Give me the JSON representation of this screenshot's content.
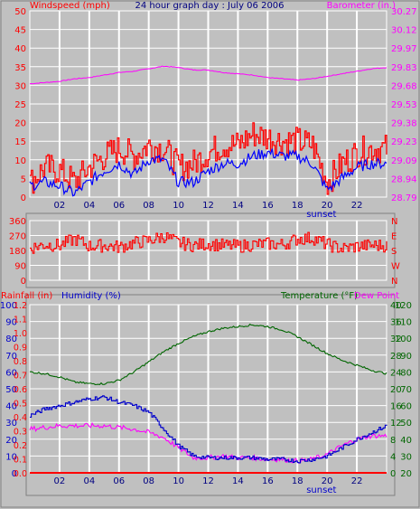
{
  "title": "24 hour graph day : July 06 2006",
  "colors": {
    "background": "#c0c0c0",
    "grid": "#ffffff",
    "windspeed": "#ff0000",
    "gust": "#ff0000",
    "avg_wind": "#0000ff",
    "barometer": "#ff00ff",
    "direction": "#ff0000",
    "rainfall": "#ff0000",
    "humidity": "#0000cc",
    "temperature": "#006600",
    "dew_point": "#ff00ff",
    "sunset_label": "#0000cc"
  },
  "x_axis": {
    "ticks": [
      "02",
      "04",
      "06",
      "08",
      "10",
      "12",
      "14",
      "16",
      "18",
      "20",
      "22"
    ],
    "tick_hours": [
      2,
      4,
      6,
      8,
      10,
      12,
      14,
      16,
      18,
      20,
      22
    ],
    "sunset_label": "sunset",
    "sunset_hour": 20.1,
    "range": [
      0,
      24
    ]
  },
  "chart_data": [
    {
      "type": "line",
      "panel": "wind-barometer",
      "left_axis_label": "Windspeed (mph)",
      "right_axis_label": "Barometer (in.)",
      "left_ylim": [
        0,
        50
      ],
      "left_ticks": [
        "0",
        "5",
        "10",
        "15",
        "20",
        "25",
        "30",
        "35",
        "40",
        "45",
        "50"
      ],
      "right_ylim": [
        28.79,
        30.27
      ],
      "right_ticks": [
        "28.79",
        "28.94",
        "29.09",
        "29.23",
        "29.38",
        "29.53",
        "29.68",
        "29.83",
        "29.97",
        "30.12",
        "30.27"
      ],
      "x": [
        0,
        1,
        2,
        3,
        4,
        5,
        6,
        7,
        8,
        9,
        10,
        11,
        12,
        13,
        14,
        15,
        16,
        17,
        18,
        19,
        20,
        21,
        22,
        23,
        24
      ],
      "series": [
        {
          "name": "Windspeed (mph)",
          "axis": "left",
          "values": [
            4,
            8,
            7,
            4,
            8,
            11,
            13,
            11,
            14,
            13,
            8,
            9,
            12,
            14,
            14,
            17,
            16,
            15,
            15,
            14,
            4,
            9,
            12,
            13,
            13
          ]
        },
        {
          "name": "Avg windspeed",
          "axis": "left",
          "values": [
            3,
            4,
            3,
            1,
            4,
            7,
            9,
            6,
            10,
            10,
            4,
            4,
            7,
            9,
            9,
            11,
            12,
            11,
            11,
            9,
            2,
            5,
            8,
            9,
            9
          ]
        },
        {
          "name": "Barometer (in.)",
          "axis": "right",
          "values": [
            29.69,
            29.7,
            29.71,
            29.73,
            29.74,
            29.76,
            29.78,
            29.79,
            29.81,
            29.83,
            29.82,
            29.8,
            29.8,
            29.78,
            29.77,
            29.76,
            29.74,
            29.73,
            29.72,
            29.73,
            29.75,
            29.77,
            29.79,
            29.81,
            29.82
          ]
        }
      ]
    },
    {
      "type": "line",
      "panel": "wind-direction",
      "left_ylim": [
        0,
        360
      ],
      "left_ticks": [
        "0",
        "90",
        "180",
        "270",
        "360"
      ],
      "right_ticks": [
        "N",
        "W",
        "S",
        "E",
        "N"
      ],
      "x": [
        0,
        1,
        2,
        3,
        4,
        5,
        6,
        7,
        8,
        9,
        10,
        11,
        12,
        13,
        14,
        15,
        16,
        17,
        18,
        19,
        20,
        21,
        22,
        23,
        24
      ],
      "series": [
        {
          "name": "Wind direction",
          "axis": "left",
          "values": [
            195,
            215,
            210,
            250,
            205,
            210,
            200,
            225,
            240,
            265,
            225,
            210,
            220,
            210,
            205,
            215,
            220,
            215,
            250,
            255,
            215,
            190,
            205,
            210,
            210
          ]
        }
      ]
    },
    {
      "type": "line",
      "panel": "temperature-humidity",
      "left_axis_labels": [
        "Rainfall (in)",
        "Humidity (%)"
      ],
      "right_axis_labels": [
        "Temperature (°F)",
        "Dew Point"
      ],
      "rain_ticks": [
        "0.0",
        "0.1",
        "0.2",
        "0.3",
        "0.4",
        "0.5",
        "0.6",
        "0.7",
        "0.8",
        "0.9",
        "1.0",
        "1.1",
        "1.2"
      ],
      "humidity_ticks": [
        "0",
        "10",
        "20",
        "30",
        "40",
        "50",
        "60",
        "70",
        "80",
        "90",
        "100"
      ],
      "celsius_ticks": [
        "0",
        "4",
        "8",
        "12",
        "16",
        "20",
        "24",
        "28",
        "32",
        "36",
        "40"
      ],
      "temp_ticks": [
        "20",
        "30",
        "40",
        "50",
        "60",
        "70",
        "80",
        "90",
        "100",
        "110",
        "120"
      ],
      "humidity_ylim": [
        0,
        100
      ],
      "temp_ylim": [
        20,
        120
      ],
      "x": [
        0,
        1,
        2,
        3,
        4,
        5,
        6,
        7,
        8,
        9,
        10,
        11,
        12,
        13,
        14,
        15,
        16,
        17,
        18,
        19,
        20,
        21,
        22,
        23,
        24
      ],
      "series": [
        {
          "name": "Rainfall (in)",
          "axis": "rain",
          "values": [
            0,
            0,
            0,
            0,
            0,
            0,
            0,
            0,
            0,
            0,
            0,
            0,
            0,
            0,
            0,
            0,
            0,
            0,
            0,
            0,
            0,
            0,
            0,
            0,
            0
          ]
        },
        {
          "name": "Humidity (%)",
          "axis": "humidity",
          "values": [
            34,
            38,
            40,
            42,
            44,
            45,
            42,
            40,
            36,
            26,
            16,
            10,
            9,
            9,
            9,
            9,
            8,
            8,
            7,
            8,
            10,
            15,
            20,
            24,
            28
          ]
        },
        {
          "name": "Temperature (°F)",
          "axis": "temp",
          "values": [
            80,
            79,
            77,
            74,
            73,
            73,
            75,
            80,
            86,
            92,
            97,
            101,
            104,
            106,
            107,
            108,
            107,
            105,
            101,
            96,
            91,
            87,
            84,
            81,
            79
          ]
        },
        {
          "name": "Dew Point",
          "axis": "temp",
          "values": [
            46,
            47,
            48,
            48,
            48,
            48,
            47,
            46,
            44,
            41,
            35,
            29,
            29,
            30,
            29,
            29,
            28,
            28,
            27,
            28,
            31,
            36,
            40,
            42,
            42
          ]
        }
      ]
    }
  ]
}
